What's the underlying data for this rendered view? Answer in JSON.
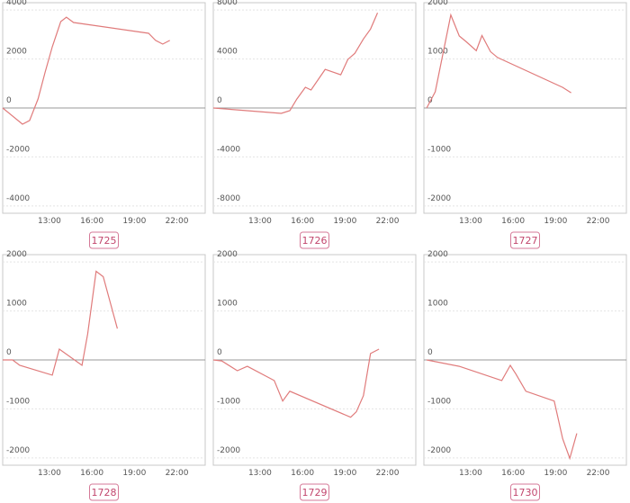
{
  "chart_data": [
    {
      "type": "line",
      "label": "1725",
      "color": "#e07b7b",
      "x": [
        9.7,
        11.1,
        11.6,
        12.2,
        12.7,
        13.2,
        13.8,
        14.2,
        14.7,
        20.0,
        20.5,
        21.0,
        21.5
      ],
      "values": [
        0,
        -660,
        -510,
        370,
        1470,
        2500,
        3530,
        3710,
        3490,
        3050,
        2760,
        2610,
        2760
      ],
      "xlim": [
        9.7,
        24
      ],
      "xticks": [
        {
          "value": 13,
          "label": "13:00"
        },
        {
          "value": 16,
          "label": "16:00"
        },
        {
          "value": 19,
          "label": "19:00"
        },
        {
          "value": 22,
          "label": "22:00"
        }
      ],
      "ylim": [
        -4300,
        4300
      ],
      "yticks": [
        -4000,
        -2000,
        0,
        2000,
        4000
      ],
      "grid": true
    },
    {
      "type": "line",
      "label": "1726",
      "color": "#e07b7b",
      "x": [
        9.7,
        14.5,
        15.1,
        15.6,
        16.2,
        16.6,
        17.6,
        18.7,
        19.2,
        19.7,
        20.3,
        20.8,
        21.3
      ],
      "values": [
        0,
        -440,
        -220,
        730,
        1690,
        1470,
        3150,
        2710,
        3960,
        4470,
        5640,
        6450,
        7770
      ],
      "xlim": [
        9.7,
        24
      ],
      "xticks": [
        {
          "value": 13,
          "label": "13:00"
        },
        {
          "value": 16,
          "label": "16:00"
        },
        {
          "value": 19,
          "label": "19:00"
        },
        {
          "value": 22,
          "label": "22:00"
        }
      ],
      "ylim": [
        -8600,
        8600
      ],
      "yticks": [
        -8000,
        -4000,
        0,
        4000,
        8000
      ],
      "grid": true
    },
    {
      "type": "line",
      "label": "1727",
      "color": "#e07b7b",
      "x": [
        9.9,
        10.5,
        11.6,
        12.2,
        12.7,
        13.4,
        13.8,
        14.4,
        14.9,
        19.5,
        20.1
      ],
      "values": [
        0,
        330,
        1900,
        1470,
        1350,
        1170,
        1480,
        1150,
        1030,
        420,
        310
      ],
      "xlim": [
        9.7,
        24
      ],
      "xticks": [
        {
          "value": 13,
          "label": "13:00"
        },
        {
          "value": 16,
          "label": "16:00"
        },
        {
          "value": 19,
          "label": "19:00"
        },
        {
          "value": 22,
          "label": "22:00"
        }
      ],
      "ylim": [
        -2150,
        2150
      ],
      "yticks": [
        -2000,
        -1000,
        0,
        1000,
        2000
      ],
      "grid": true
    },
    {
      "type": "line",
      "label": "1728",
      "color": "#e07b7b",
      "x": [
        9.7,
        10.4,
        10.9,
        13.2,
        13.7,
        15.3,
        15.7,
        16.3,
        16.8,
        17.8
      ],
      "values": [
        0,
        0,
        -110,
        -310,
        220,
        -110,
        530,
        1810,
        1700,
        640
      ],
      "xlim": [
        9.7,
        24
      ],
      "xticks": [
        {
          "value": 13,
          "label": "13:00"
        },
        {
          "value": 16,
          "label": "16:00"
        },
        {
          "value": 19,
          "label": "19:00"
        },
        {
          "value": 22,
          "label": "22:00"
        }
      ],
      "ylim": [
        -2150,
        2150
      ],
      "yticks": [
        -2000,
        -1000,
        0,
        1000,
        2000
      ],
      "grid": true
    },
    {
      "type": "line",
      "label": "1729",
      "color": "#e07b7b",
      "x": [
        9.7,
        10.3,
        11.4,
        12.1,
        14.0,
        14.6,
        15.1,
        19.4,
        19.8,
        20.3,
        20.8,
        21.4
      ],
      "values": [
        0,
        -20,
        -220,
        -130,
        -420,
        -840,
        -640,
        -1170,
        -1060,
        -730,
        130,
        220
      ],
      "xlim": [
        9.7,
        24
      ],
      "xticks": [
        {
          "value": 13,
          "label": "13:00"
        },
        {
          "value": 16,
          "label": "16:00"
        },
        {
          "value": 19,
          "label": "19:00"
        },
        {
          "value": 22,
          "label": "22:00"
        }
      ],
      "ylim": [
        -2150,
        2150
      ],
      "yticks": [
        -2000,
        -1000,
        0,
        1000,
        2000
      ],
      "grid": true
    },
    {
      "type": "line",
      "label": "1730",
      "color": "#e07b7b",
      "x": [
        9.9,
        12.2,
        15.2,
        15.8,
        16.2,
        16.9,
        18.9,
        19.5,
        20.0,
        20.5
      ],
      "values": [
        0,
        -130,
        -420,
        -110,
        -290,
        -640,
        -840,
        -1610,
        -2010,
        -1500
      ],
      "xlim": [
        9.7,
        24
      ],
      "xticks": [
        {
          "value": 13,
          "label": "13:00"
        },
        {
          "value": 16,
          "label": "16:00"
        },
        {
          "value": 19,
          "label": "19:00"
        },
        {
          "value": 22,
          "label": "22:00"
        }
      ],
      "ylim": [
        -2150,
        2150
      ],
      "yticks": [
        -2000,
        -1000,
        0,
        1000,
        2000
      ],
      "grid": true
    }
  ]
}
